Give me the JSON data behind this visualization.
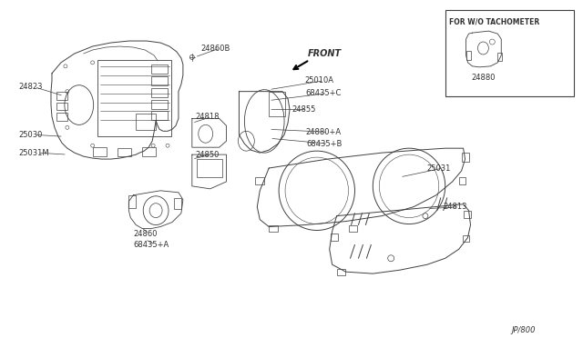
{
  "bg_color": "#ffffff",
  "line_color": "#404040",
  "text_color": "#303030",
  "fig_width": 6.4,
  "fig_height": 3.72,
  "dpi": 100,
  "page_ref": "JP/800",
  "inset_label": "FOR W/O TACHOMETER",
  "inset_part": "24880"
}
